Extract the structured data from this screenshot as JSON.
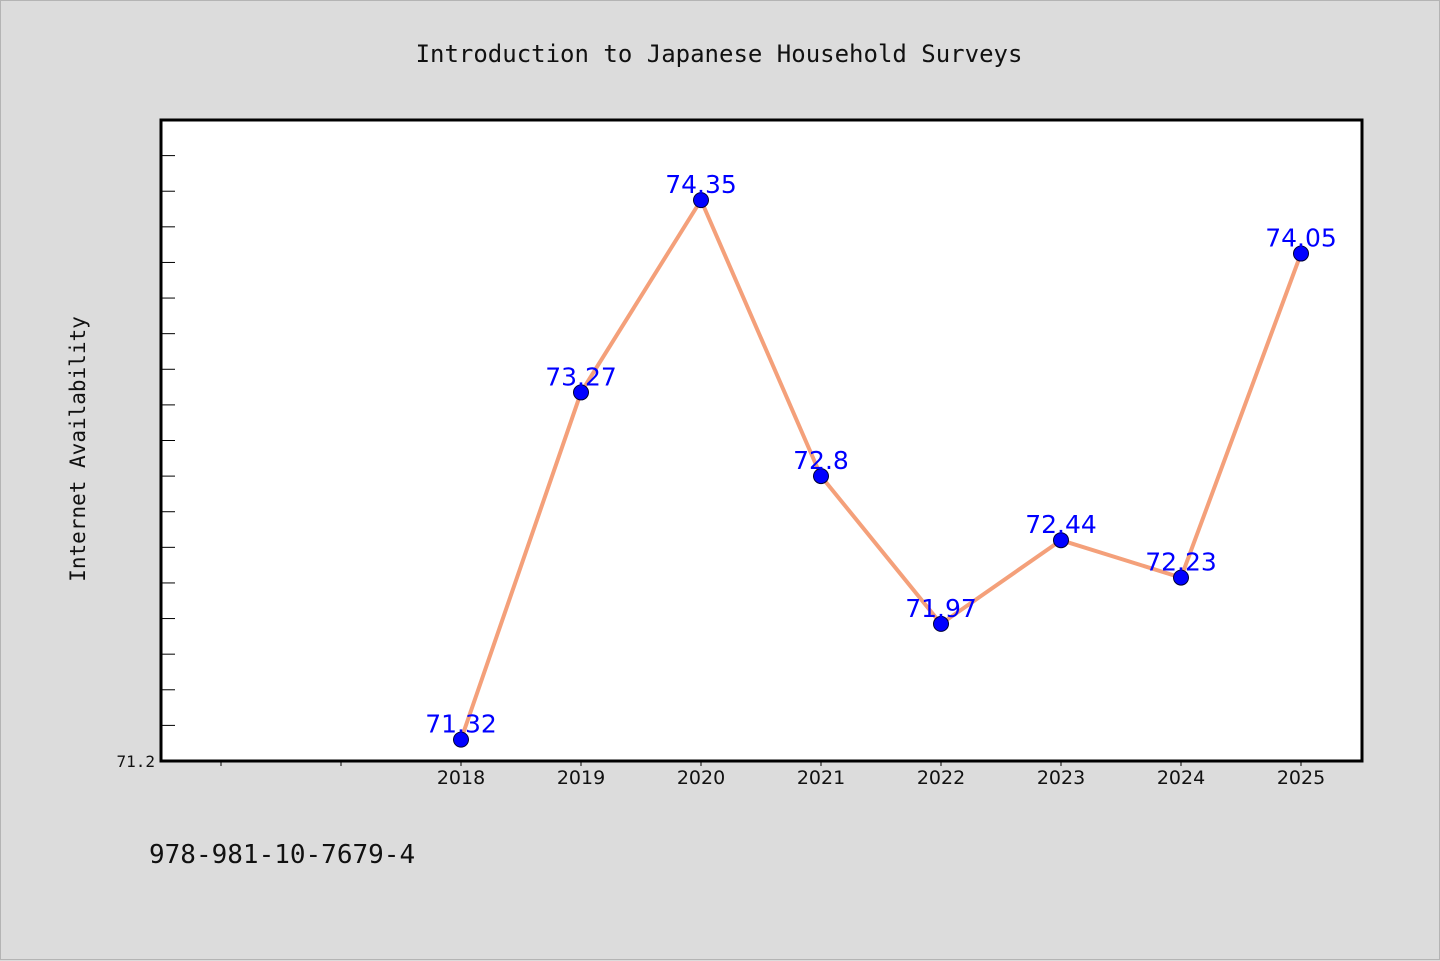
{
  "chart_data": {
    "type": "line",
    "title": "Introduction to Japanese Household Surveys",
    "xlabel": "",
    "ylabel": "Internet Availability",
    "categories": [
      "2018",
      "2019",
      "2020",
      "2021",
      "2022",
      "2023",
      "2024",
      "2025"
    ],
    "series": [
      {
        "values": [
          71.32,
          73.27,
          74.35,
          72.8,
          71.97,
          72.44,
          72.23,
          74.05
        ],
        "labels": [
          "71.32",
          "73.27",
          "74.35",
          "72.8",
          "71.97",
          "72.44",
          "72.23",
          "74.05"
        ]
      }
    ],
    "y_tick_labels": [
      "71.2"
    ],
    "ylim": [
      71.2,
      74.8
    ],
    "grid": false,
    "line_color": "#f4a07a",
    "marker_color": "#0000ff",
    "label_color": "#0000ff",
    "plot_background": "#ffffff",
    "page_background": "#dcdcdc"
  },
  "footer": {
    "text": "978-981-10-7679-4"
  }
}
